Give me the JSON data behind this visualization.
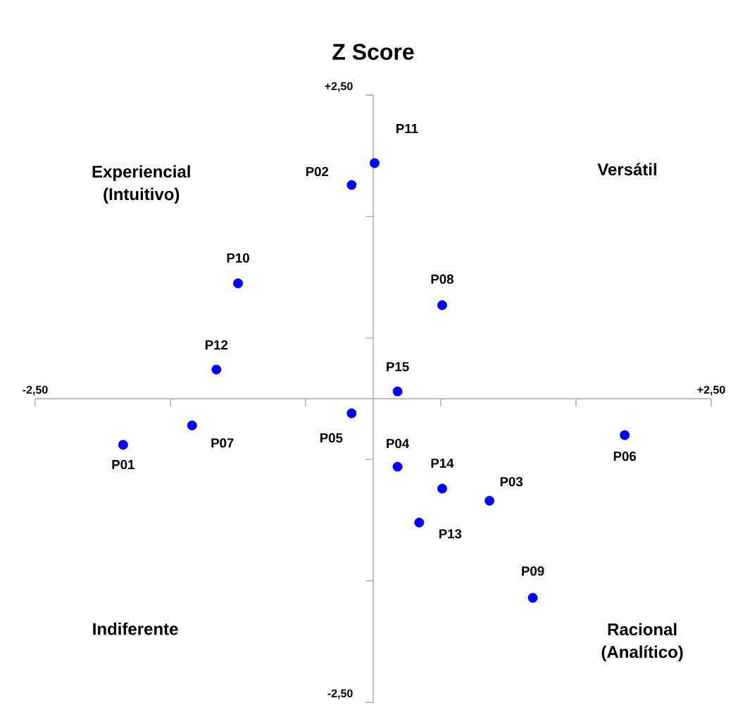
{
  "chart_data": {
    "type": "scatter",
    "title": "Z Score",
    "x": [
      0.01,
      -0.16,
      -1.0,
      0.51,
      -1.16,
      0.18,
      -1.34,
      -1.85,
      -0.16,
      1.86,
      0.18,
      0.51,
      0.86,
      0.34,
      1.18
    ],
    "values": [
      1.94,
      1.76,
      0.95,
      0.77,
      0.24,
      0.06,
      -0.22,
      -0.38,
      -0.12,
      -0.3,
      -0.56,
      -0.74,
      -0.84,
      -1.02,
      -1.64
    ],
    "color": "#0000ff",
    "marker": "circle",
    "grid": false,
    "xlim": [
      -2.5,
      2.5
    ],
    "ylim": [
      -2.5,
      2.5
    ],
    "xticks": [
      {
        "value": -2.5,
        "label": "-2,50"
      },
      {
        "value": -1.5,
        "label": null
      },
      {
        "value": -0.5,
        "label": null
      },
      {
        "value": 0.5,
        "label": null
      },
      {
        "value": 1.5,
        "label": null
      },
      {
        "value": 2.5,
        "label": "+2,50"
      }
    ],
    "yticks": [
      {
        "value": -2.5,
        "label": "-2,50"
      },
      {
        "value": -1.5,
        "label": null
      },
      {
        "value": -0.5,
        "label": null
      },
      {
        "value": 0.5,
        "label": null
      },
      {
        "value": 1.5,
        "label": null
      },
      {
        "value": 2.5,
        "label": "+2,50"
      }
    ],
    "annotations": [
      {
        "text": "P11",
        "x": 0.01,
        "y": 1.94
      },
      {
        "text": "P02",
        "x": -0.16,
        "y": 1.76
      },
      {
        "text": "P10",
        "x": -1.0,
        "y": 0.95
      },
      {
        "text": "P08",
        "x": 0.51,
        "y": 0.77
      },
      {
        "text": "P12",
        "x": -1.16,
        "y": 0.24
      },
      {
        "text": "P15",
        "x": 0.18,
        "y": 0.06
      },
      {
        "text": "P07",
        "x": -1.34,
        "y": -0.22
      },
      {
        "text": "P01",
        "x": -1.85,
        "y": -0.38
      },
      {
        "text": "P05",
        "x": -0.16,
        "y": -0.12
      },
      {
        "text": "P06",
        "x": 1.86,
        "y": -0.3
      },
      {
        "text": "P04",
        "x": 0.18,
        "y": -0.56
      },
      {
        "text": "P14",
        "x": 0.51,
        "y": -0.74
      },
      {
        "text": "P03",
        "x": 0.86,
        "y": -0.84
      },
      {
        "text": "P13",
        "x": 0.34,
        "y": -1.02
      },
      {
        "text": "P09",
        "x": 1.18,
        "y": -1.64
      },
      "Experiencial (Intuitivo)",
      "Versátil",
      "Indiferente",
      "Racional (Analítico)"
    ]
  }
}
